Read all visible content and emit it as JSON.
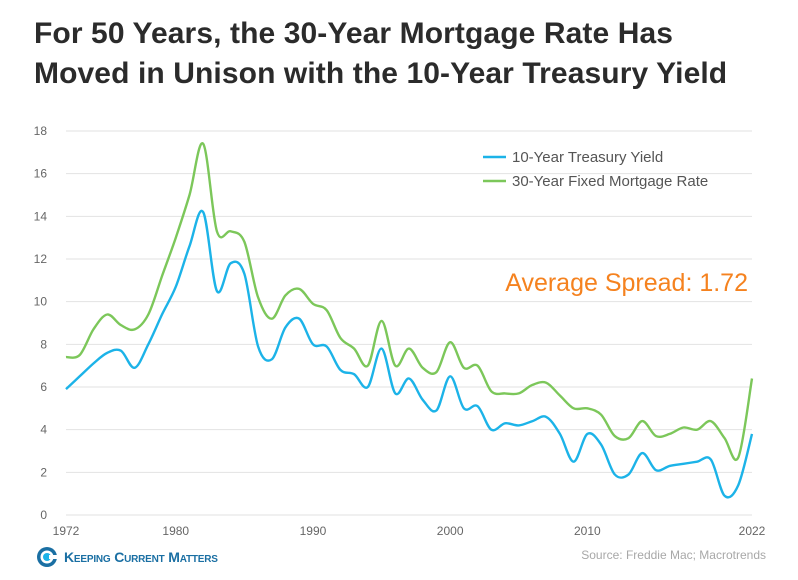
{
  "title": {
    "line1": "For 50 Years, the 30-Year Mortgage Rate Has",
    "line2": "Moved in Unison with the 10-Year Treasury Yield"
  },
  "annotation": "Average  Spread: 1.72",
  "source": "Source: Freddie Mac; Macrotrends",
  "brand": {
    "name": "Keeping Current Matters",
    "logo_icon": "kcm-logo-icon"
  },
  "colors": {
    "treasury": "#1cb3e8",
    "mortgage": "#7cc75a",
    "annotation": "#f5821f",
    "grid": "#e2e2e2"
  },
  "chart_data": {
    "type": "line",
    "xlim": [
      1972,
      2022
    ],
    "ylim": [
      0,
      18
    ],
    "yticks": [
      0,
      2,
      4,
      6,
      8,
      10,
      12,
      14,
      16,
      18
    ],
    "xticks": [
      1972,
      1980,
      1990,
      2000,
      2010,
      2022
    ],
    "grid": "horizontal",
    "legend_position": "top-right",
    "series": [
      {
        "name": "10-Year Treasury Yield",
        "color": "#1cb3e8",
        "x": [
          1972,
          1973,
          1974,
          1975,
          1976,
          1977,
          1978,
          1979,
          1980,
          1981,
          1982,
          1983,
          1984,
          1985,
          1986,
          1987,
          1988,
          1989,
          1990,
          1991,
          1992,
          1993,
          1994,
          1995,
          1996,
          1997,
          1998,
          1999,
          2000,
          2001,
          2002,
          2003,
          2004,
          2005,
          2006,
          2007,
          2008,
          2009,
          2010,
          2011,
          2012,
          2013,
          2014,
          2015,
          2016,
          2017,
          2018,
          2019,
          2020,
          2021,
          2022
        ],
        "y": [
          5.9,
          6.5,
          7.1,
          7.6,
          7.7,
          6.9,
          8.0,
          9.4,
          10.7,
          12.6,
          14.2,
          10.5,
          11.8,
          11.3,
          7.9,
          7.3,
          8.8,
          9.2,
          8.0,
          7.9,
          6.8,
          6.6,
          6.0,
          7.8,
          5.7,
          6.4,
          5.4,
          4.9,
          6.5,
          5.0,
          5.1,
          4.0,
          4.3,
          4.2,
          4.4,
          4.6,
          3.8,
          2.5,
          3.8,
          3.3,
          1.9,
          1.9,
          2.9,
          2.1,
          2.3,
          2.4,
          2.5,
          2.6,
          0.9,
          1.4,
          3.8
        ]
      },
      {
        "name": "30-Year Fixed Mortgage Rate",
        "color": "#7cc75a",
        "x": [
          1972,
          1973,
          1974,
          1975,
          1976,
          1977,
          1978,
          1979,
          1980,
          1981,
          1982,
          1983,
          1984,
          1985,
          1986,
          1987,
          1988,
          1989,
          1990,
          1991,
          1992,
          1993,
          1994,
          1995,
          1996,
          1997,
          1998,
          1999,
          2000,
          2001,
          2002,
          2003,
          2004,
          2005,
          2006,
          2007,
          2008,
          2009,
          2010,
          2011,
          2012,
          2013,
          2014,
          2015,
          2016,
          2017,
          2018,
          2019,
          2020,
          2021,
          2022
        ],
        "y": [
          7.4,
          7.5,
          8.7,
          9.4,
          8.9,
          8.7,
          9.4,
          11.2,
          13.0,
          15.0,
          17.4,
          13.3,
          13.3,
          12.8,
          10.2,
          9.2,
          10.3,
          10.6,
          9.9,
          9.6,
          8.3,
          7.8,
          7.0,
          9.1,
          7.0,
          7.8,
          6.9,
          6.7,
          8.1,
          6.9,
          7.0,
          5.8,
          5.7,
          5.7,
          6.1,
          6.2,
          5.6,
          5.0,
          5.0,
          4.7,
          3.7,
          3.6,
          4.4,
          3.7,
          3.8,
          4.1,
          4.0,
          4.4,
          3.6,
          2.7,
          6.4
        ]
      }
    ]
  }
}
